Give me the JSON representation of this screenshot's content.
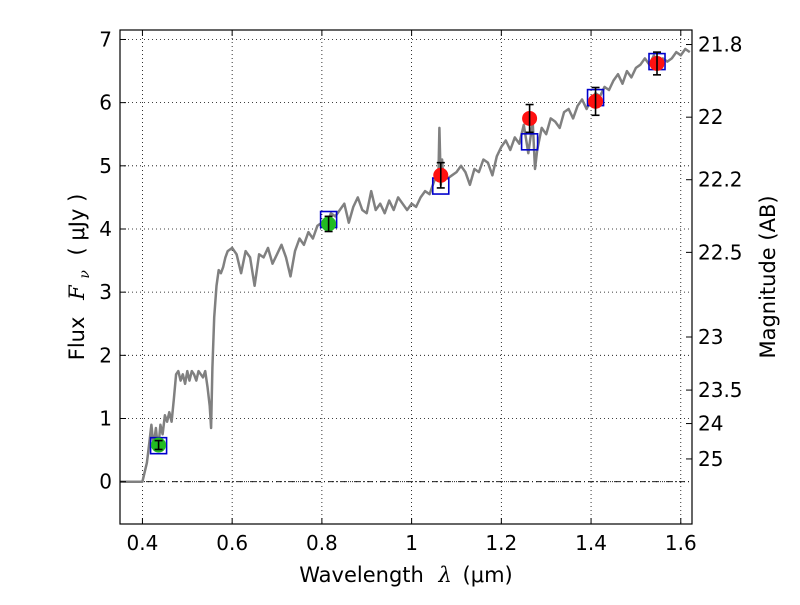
{
  "chart_data": {
    "type": "scatter",
    "xlabel": {
      "text": "Wavelength",
      "symbol": "λ",
      "unit": "(μm)"
    },
    "ylabel": {
      "text": "Flux",
      "symbol": "F",
      "subscript": "ν",
      "unit": "( μJy )"
    },
    "y2label": "Magnitude (AB)",
    "xlim": [
      0.35,
      1.625
    ],
    "ylim": [
      -0.67,
      7.15
    ],
    "grid": true,
    "x_ticks": [
      {
        "value": 0.4,
        "label": "0.4"
      },
      {
        "value": 0.6,
        "label": "0.6"
      },
      {
        "value": 0.8,
        "label": "0.8"
      },
      {
        "value": 1.0,
        "label": "1"
      },
      {
        "value": 1.2,
        "label": "1.2"
      },
      {
        "value": 1.4,
        "label": "1.4"
      },
      {
        "value": 1.6,
        "label": "1.6"
      }
    ],
    "y_ticks": [
      {
        "value": 0,
        "label": "0"
      },
      {
        "value": 1,
        "label": "1"
      },
      {
        "value": 2,
        "label": "2"
      },
      {
        "value": 3,
        "label": "3"
      },
      {
        "value": 4,
        "label": "4"
      },
      {
        "value": 5,
        "label": "5"
      },
      {
        "value": 6,
        "label": "6"
      },
      {
        "value": 7,
        "label": "7"
      }
    ],
    "y2_ticks": [
      {
        "flux": 6.92,
        "label": "21.8"
      },
      {
        "flux": 5.77,
        "label": "22"
      },
      {
        "flux": 4.78,
        "label": "22.2"
      },
      {
        "flux": 3.63,
        "label": "22.5"
      },
      {
        "flux": 2.29,
        "label": "23"
      },
      {
        "flux": 1.45,
        "label": "23.5"
      },
      {
        "flux": 0.92,
        "label": "24"
      },
      {
        "flux": 0.36,
        "label": "25"
      }
    ],
    "series": [
      {
        "name": "model spectrum",
        "style": "line",
        "color": "#808080",
        "x": [
          0.35,
          0.4,
          0.41,
          0.415,
          0.42,
          0.425,
          0.43,
          0.435,
          0.44,
          0.445,
          0.45,
          0.455,
          0.46,
          0.465,
          0.47,
          0.475,
          0.48,
          0.485,
          0.49,
          0.495,
          0.5,
          0.505,
          0.51,
          0.515,
          0.52,
          0.525,
          0.53,
          0.535,
          0.54,
          0.545,
          0.55,
          0.553,
          0.556,
          0.56,
          0.565,
          0.57,
          0.575,
          0.58,
          0.585,
          0.59,
          0.6,
          0.61,
          0.62,
          0.63,
          0.64,
          0.65,
          0.66,
          0.67,
          0.68,
          0.69,
          0.7,
          0.71,
          0.72,
          0.73,
          0.74,
          0.75,
          0.76,
          0.77,
          0.78,
          0.79,
          0.8,
          0.81,
          0.82,
          0.83,
          0.84,
          0.85,
          0.86,
          0.87,
          0.88,
          0.89,
          0.9,
          0.91,
          0.92,
          0.93,
          0.94,
          0.95,
          0.96,
          0.97,
          0.98,
          0.99,
          1.0,
          1.01,
          1.02,
          1.03,
          1.04,
          1.05,
          1.06,
          1.062,
          1.065,
          1.068,
          1.07,
          1.08,
          1.09,
          1.1,
          1.11,
          1.12,
          1.13,
          1.14,
          1.15,
          1.16,
          1.17,
          1.18,
          1.19,
          1.2,
          1.21,
          1.22,
          1.23,
          1.24,
          1.25,
          1.26,
          1.27,
          1.275,
          1.28,
          1.29,
          1.3,
          1.31,
          1.32,
          1.33,
          1.34,
          1.35,
          1.36,
          1.37,
          1.38,
          1.39,
          1.4,
          1.41,
          1.42,
          1.43,
          1.44,
          1.45,
          1.46,
          1.47,
          1.48,
          1.49,
          1.5,
          1.51,
          1.52,
          1.53,
          1.54,
          1.55,
          1.56,
          1.57,
          1.58,
          1.59,
          1.6,
          1.61,
          1.62
        ],
        "y": [
          0.0,
          0.0,
          0.3,
          0.6,
          0.9,
          0.55,
          0.85,
          0.5,
          0.9,
          0.75,
          1.05,
          0.95,
          1.1,
          0.95,
          1.3,
          1.7,
          1.75,
          1.6,
          1.7,
          1.55,
          1.75,
          1.6,
          1.75,
          1.7,
          1.6,
          1.75,
          1.7,
          1.65,
          1.75,
          1.5,
          1.2,
          0.85,
          1.8,
          2.6,
          3.1,
          3.35,
          3.3,
          3.4,
          3.55,
          3.65,
          3.7,
          3.6,
          3.3,
          3.65,
          3.55,
          3.1,
          3.6,
          3.55,
          3.7,
          3.45,
          3.6,
          3.75,
          3.55,
          3.25,
          3.65,
          3.85,
          3.75,
          3.95,
          3.85,
          4.05,
          4.1,
          4.05,
          4.25,
          4.2,
          4.3,
          4.4,
          4.1,
          4.35,
          4.5,
          4.3,
          4.25,
          4.6,
          4.3,
          4.4,
          4.25,
          4.45,
          4.3,
          4.5,
          4.4,
          4.3,
          4.4,
          4.35,
          4.5,
          4.6,
          4.55,
          4.75,
          4.9,
          5.6,
          4.7,
          5.1,
          4.85,
          4.8,
          4.85,
          4.9,
          5.0,
          4.9,
          4.7,
          4.95,
          4.9,
          5.1,
          5.05,
          4.85,
          5.15,
          5.3,
          5.4,
          5.25,
          5.45,
          5.35,
          5.65,
          5.2,
          5.7,
          4.95,
          5.25,
          5.6,
          5.5,
          5.75,
          5.7,
          5.6,
          5.85,
          5.9,
          5.75,
          5.95,
          6.05,
          5.9,
          6.05,
          6.15,
          6.1,
          6.25,
          6.2,
          6.35,
          6.45,
          6.3,
          6.5,
          6.4,
          6.55,
          6.6,
          6.7,
          6.6,
          6.75,
          6.55,
          6.7,
          6.65,
          6.7,
          6.8,
          6.75,
          6.85,
          6.8
        ]
      },
      {
        "name": "model photometry",
        "style": "open-square",
        "color": "#0000cc",
        "x": [
          0.436,
          0.815,
          1.065,
          1.263,
          1.41,
          1.547
        ],
        "y": [
          0.57,
          4.15,
          4.68,
          5.38,
          6.08,
          6.65
        ]
      },
      {
        "name": "observed photometry (filled)",
        "style": "filled-circle-errorbar",
        "x": [
          0.436,
          0.815,
          1.065,
          1.263,
          1.41,
          1.547
        ],
        "y": [
          0.58,
          4.08,
          4.85,
          5.75,
          6.02,
          6.62
        ],
        "yerr": [
          0.07,
          0.12,
          0.2,
          0.22,
          0.22,
          0.18
        ],
        "colors": [
          "#22bb22",
          "#22bb22",
          "#ff1111",
          "#ff1111",
          "#ff1111",
          "#ff1111"
        ]
      }
    ]
  }
}
